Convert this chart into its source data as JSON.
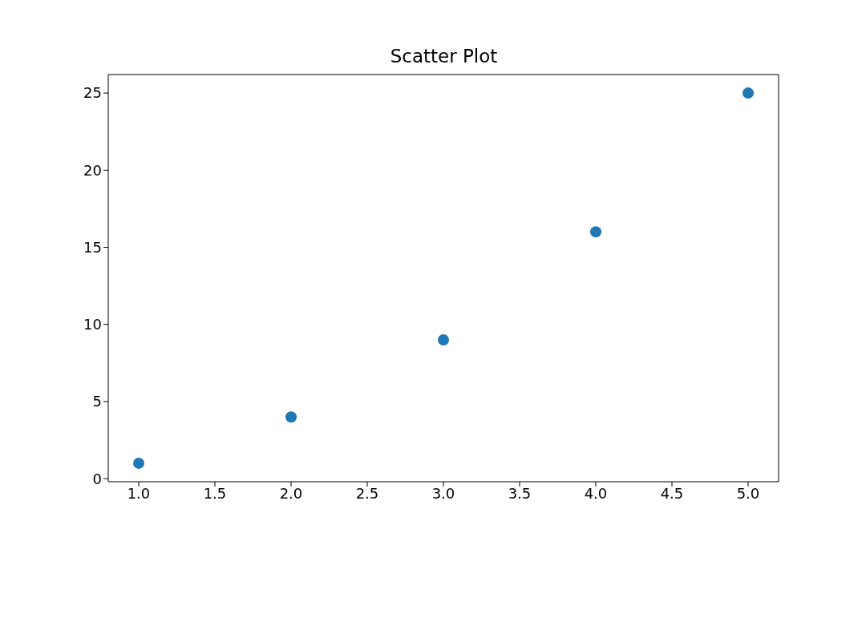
{
  "chart_data": {
    "type": "scatter",
    "title": "Scatter Plot",
    "x": [
      1,
      2,
      3,
      4,
      5
    ],
    "series": [
      {
        "color": "#1f77b4",
        "values": [
          1,
          4,
          9,
          16,
          25
        ]
      }
    ],
    "xlim": [
      0.8,
      5.2
    ],
    "xticks": [
      {
        "value": 1,
        "label": "1.0"
      },
      1.5,
      {
        "value": 2,
        "label": "2.0"
      },
      2.5,
      {
        "value": 3,
        "label": "3.0"
      },
      3.5,
      {
        "value": 4,
        "label": "4.0"
      },
      4.5,
      {
        "value": 5,
        "label": "5.0"
      }
    ],
    "ylim": [
      -0.2,
      26.2
    ],
    "yticks": [
      0,
      5,
      10,
      15,
      20,
      25
    ],
    "grid": false,
    "legend": false,
    "marker": "circle"
  }
}
